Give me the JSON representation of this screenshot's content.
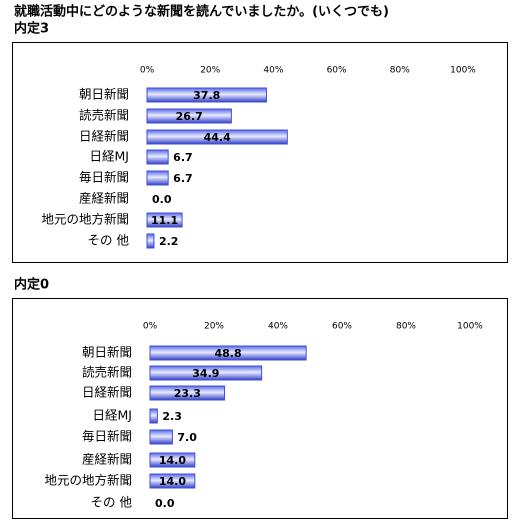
{
  "chart_data": [
    {
      "type": "bar",
      "orientation": "horizontal",
      "title": "就職活動中にどのような新聞を読んでいましたか。(いくつでも)",
      "subtitle": "内定3",
      "categories": [
        "朝日新聞",
        "読売新聞",
        "日経新聞",
        "日経MJ",
        "毎日新聞",
        "産経新聞",
        "地元の地方新聞",
        "その 他"
      ],
      "values": [
        37.8,
        26.7,
        44.4,
        6.7,
        6.7,
        0,
        11.1,
        2.2
      ],
      "value_labels": [
        "37.8",
        "26.7",
        "44.4",
        "6.7",
        "6.7",
        "0.0",
        "11.1",
        "2.2"
      ],
      "color": "#3f4fd8",
      "xlim": [
        0,
        100
      ],
      "xticks": [
        {
          "value": 0,
          "label": "0%"
        },
        {
          "value": 20,
          "label": "20%"
        },
        {
          "value": 40,
          "label": "40%"
        },
        {
          "value": 60,
          "label": "60%"
        },
        {
          "value": 80,
          "label": "80%"
        },
        {
          "value": 100,
          "label": "100%"
        }
      ]
    },
    {
      "type": "bar",
      "orientation": "horizontal",
      "title": "内定0",
      "categories": [
        "朝日新聞",
        "読売新聞",
        "日経新聞",
        "日経MJ",
        "毎日新聞",
        "産経新聞",
        "地元の地方新聞",
        "その 他"
      ],
      "values": [
        48.8,
        34.9,
        23.3,
        2.3,
        7,
        14,
        14,
        0
      ],
      "value_labels": [
        "48.8",
        "34.9",
        "23.3",
        "2.3",
        "7.0",
        "14.0",
        "14.0",
        "0.0"
      ],
      "color": "#3f4fd8",
      "xlim": [
        0,
        100
      ],
      "xticks": [
        {
          "value": 0,
          "label": "0%"
        },
        {
          "value": 20,
          "label": "20%"
        },
        {
          "value": 40,
          "label": "40%"
        },
        {
          "value": 60,
          "label": "60%"
        },
        {
          "value": 80,
          "label": "80%"
        },
        {
          "value": 100,
          "label": "100%"
        }
      ]
    }
  ]
}
